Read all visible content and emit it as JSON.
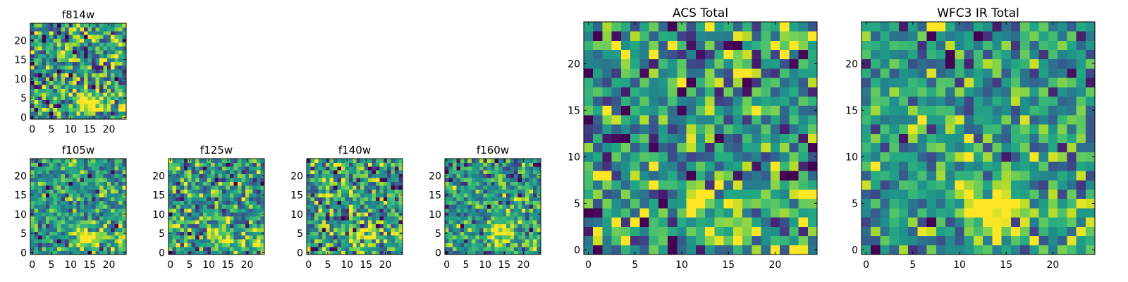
{
  "chart_data": [
    {
      "type": "heatmap",
      "title": "f814w",
      "x_range": [
        0,
        24
      ],
      "y_range": [
        0,
        24
      ],
      "xticks": [
        0,
        5,
        10,
        15,
        20
      ],
      "yticks": [
        0,
        5,
        10,
        15,
        20
      ],
      "colormap": "viridis",
      "source": {
        "x": 14,
        "y": 4,
        "strength": 1.0
      },
      "secondary_source": {
        "x": 24,
        "y": 3,
        "strength": 0.7
      },
      "noise": 0.55,
      "seed": 11
    },
    {
      "type": "heatmap",
      "title": "f105w",
      "x_range": [
        0,
        24
      ],
      "y_range": [
        0,
        24
      ],
      "xticks": [
        0,
        5,
        10,
        15,
        20
      ],
      "yticks": [
        0,
        5,
        10,
        15,
        20
      ],
      "colormap": "viridis",
      "source": {
        "x": 14,
        "y": 4,
        "strength": 1.0
      },
      "secondary_source": {
        "x": 24,
        "y": 3,
        "strength": 0.7
      },
      "noise": 0.35,
      "seed": 23
    },
    {
      "type": "heatmap",
      "title": "f125w",
      "x_range": [
        0,
        24
      ],
      "y_range": [
        0,
        24
      ],
      "xticks": [
        0,
        5,
        10,
        15,
        20
      ],
      "yticks": [
        0,
        5,
        10,
        15,
        20
      ],
      "colormap": "viridis",
      "source": {
        "x": 14,
        "y": 4,
        "strength": 0.9
      },
      "secondary_source": {
        "x": 24,
        "y": 3,
        "strength": 0.6
      },
      "noise": 0.45,
      "seed": 37
    },
    {
      "type": "heatmap",
      "title": "f140w",
      "x_range": [
        0,
        24
      ],
      "y_range": [
        0,
        24
      ],
      "xticks": [
        0,
        5,
        10,
        15,
        20
      ],
      "yticks": [
        0,
        5,
        10,
        15,
        20
      ],
      "colormap": "viridis",
      "source": {
        "x": 14,
        "y": 4,
        "strength": 0.9
      },
      "secondary_source": {
        "x": 24,
        "y": 3,
        "strength": 0.6
      },
      "noise": 0.5,
      "seed": 41
    },
    {
      "type": "heatmap",
      "title": "f160w",
      "x_range": [
        0,
        24
      ],
      "y_range": [
        0,
        24
      ],
      "xticks": [
        0,
        5,
        10,
        15,
        20
      ],
      "yticks": [
        0,
        5,
        10,
        15,
        20
      ],
      "colormap": "viridis",
      "source": {
        "x": 14,
        "y": 5,
        "strength": 1.0
      },
      "secondary_source": {
        "x": 24,
        "y": 3,
        "strength": 0.6
      },
      "noise": 0.4,
      "seed": 53
    },
    {
      "type": "heatmap",
      "title": "ACS Total",
      "x_range": [
        0,
        24
      ],
      "y_range": [
        0,
        24
      ],
      "xticks": [
        0,
        5,
        10,
        15,
        20
      ],
      "yticks": [
        0,
        5,
        10,
        15,
        20
      ],
      "colormap": "viridis",
      "source": {
        "x": 14,
        "y": 4,
        "strength": 1.0
      },
      "secondary_source": {
        "x": 24,
        "y": 3,
        "strength": 0.7
      },
      "noise": 0.55,
      "seed": 67
    },
    {
      "type": "heatmap",
      "title": "WFC3 IR Total",
      "x_range": [
        0,
        24
      ],
      "y_range": [
        0,
        24
      ],
      "xticks": [
        0,
        5,
        10,
        15,
        20
      ],
      "yticks": [
        0,
        5,
        10,
        15,
        20
      ],
      "colormap": "viridis",
      "source": {
        "x": 14,
        "y": 4,
        "strength": 1.0
      },
      "secondary_source": {
        "x": 24,
        "y": 3,
        "strength": 0.7
      },
      "noise": 0.4,
      "seed": 79
    }
  ]
}
